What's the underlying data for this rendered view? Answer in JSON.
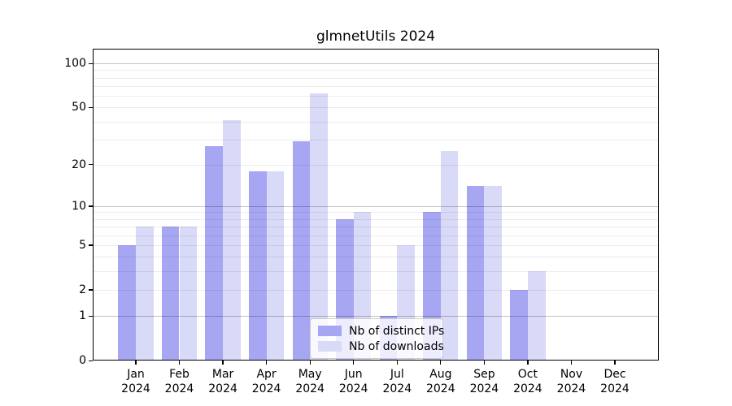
{
  "chart_data": {
    "type": "bar",
    "title": "glmnetUtils 2024",
    "categories": [
      "Jan 2024",
      "Feb 2024",
      "Mar 2024",
      "Apr 2024",
      "May 2024",
      "Jun 2024",
      "Jul 2024",
      "Aug 2024",
      "Sep 2024",
      "Oct 2024",
      "Nov 2024",
      "Dec 2024"
    ],
    "series": [
      {
        "name": "Nb of distinct IPs",
        "color": "#a6a6f2",
        "values": [
          5,
          7,
          27,
          18,
          29,
          8,
          1,
          9,
          14,
          2,
          0,
          0
        ]
      },
      {
        "name": "Nb of downloads",
        "color": "#d9d9f8",
        "values": [
          7,
          7,
          41,
          18,
          62,
          9,
          5,
          25,
          14,
          3,
          0,
          0
        ]
      }
    ],
    "xlabel": "",
    "ylabel": "",
    "yscale": "log1p",
    "ylim": [
      0,
      127
    ],
    "yticks": [
      0,
      1,
      2,
      5,
      10,
      20,
      50,
      100
    ],
    "major_gridlines": [
      1,
      10,
      100
    ],
    "minor_gridlines": [
      2,
      3,
      4,
      5,
      6,
      7,
      8,
      9,
      20,
      30,
      40,
      50,
      60,
      70,
      80,
      90
    ],
    "grid": true,
    "legend_position": "lower center",
    "background": "#ffffff"
  }
}
